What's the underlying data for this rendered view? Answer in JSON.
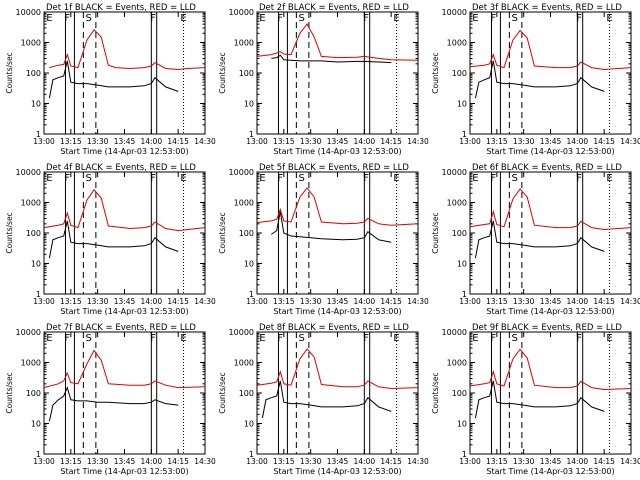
{
  "colors": {
    "events": "#000000",
    "lld": "#e00000",
    "axes": "#000000"
  },
  "shared": {
    "xlabel": "Start Time (14-Apr-03 12:53:00)",
    "ylabel": "Counts/sec",
    "x_tick_labels": [
      "13:00",
      "13:15",
      "13:30",
      "13:45",
      "14:00",
      "14:15",
      "14:30"
    ],
    "y_tick_labels": [
      "1",
      "10",
      "100",
      "1000",
      "10000"
    ],
    "markers": [
      "E",
      "F",
      "S",
      "F",
      "E"
    ]
  },
  "chart_data": [
    {
      "type": "line",
      "title": "Det 1f BLACK = Events, RED = LLD",
      "ylim": [
        1,
        10000
      ],
      "scale": "log",
      "series": [
        {
          "color": "#e00000",
          "x": [
            "13:03",
            "13:08",
            "13:11",
            "13:13",
            "13:15",
            "13:19",
            "13:24",
            "13:28",
            "13:32",
            "13:36",
            "13:40",
            "13:48",
            "13:56",
            "14:00",
            "14:02",
            "14:08",
            "14:15",
            "14:20",
            "14:30"
          ],
          "values": [
            150,
            180,
            190,
            400,
            170,
            150,
            1200,
            2600,
            1500,
            180,
            150,
            140,
            150,
            170,
            220,
            140,
            130,
            140,
            150
          ]
        },
        {
          "color": "#000000",
          "x": [
            "13:03",
            "13:05",
            "13:08",
            "13:11",
            "13:13",
            "13:15",
            "13:19",
            "13:24",
            "13:30",
            "13:36",
            "13:40",
            "13:48",
            "13:56",
            "14:00",
            "14:02",
            "14:08",
            "14:15"
          ],
          "values": [
            15,
            60,
            70,
            80,
            250,
            50,
            45,
            45,
            40,
            35,
            35,
            35,
            38,
            45,
            70,
            35,
            25
          ]
        }
      ]
    },
    {
      "type": "line",
      "title": "Det 2f BLACK = Events, RED = LLD",
      "ylim": [
        1,
        10000
      ],
      "scale": "log",
      "series": [
        {
          "color": "#e00000",
          "x": [
            "13:00",
            "13:08",
            "13:11",
            "13:13",
            "13:15",
            "13:19",
            "13:24",
            "13:28",
            "13:32",
            "13:36",
            "13:45",
            "13:56",
            "14:00",
            "14:08",
            "14:15",
            "14:30"
          ],
          "values": [
            350,
            400,
            450,
            500,
            420,
            400,
            2000,
            4000,
            1500,
            350,
            320,
            330,
            350,
            300,
            270,
            260
          ]
        },
        {
          "color": "#000000",
          "x": [
            "13:08",
            "13:11",
            "13:13",
            "13:15",
            "13:19",
            "13:24",
            "13:30",
            "13:36",
            "13:45",
            "13:56",
            "14:00",
            "14:08",
            "14:15"
          ],
          "values": [
            300,
            320,
            380,
            270,
            260,
            250,
            250,
            250,
            230,
            240,
            240,
            230,
            220
          ]
        }
      ]
    },
    {
      "type": "line",
      "title": "Det 3f BLACK = Events, RED = LLD",
      "ylim": [
        1,
        10000
      ],
      "scale": "log",
      "series": [
        {
          "color": "#e00000",
          "x": [
            "13:00",
            "13:08",
            "13:11",
            "13:13",
            "13:15",
            "13:19",
            "13:24",
            "13:28",
            "13:32",
            "13:36",
            "13:48",
            "13:56",
            "14:00",
            "14:02",
            "14:08",
            "14:15",
            "14:30"
          ],
          "values": [
            160,
            180,
            200,
            400,
            180,
            150,
            1200,
            2500,
            1400,
            170,
            150,
            150,
            170,
            230,
            150,
            130,
            150
          ]
        },
        {
          "color": "#000000",
          "x": [
            "13:03",
            "13:05",
            "13:08",
            "13:11",
            "13:13",
            "13:15",
            "13:19",
            "13:24",
            "13:30",
            "13:36",
            "13:48",
            "13:56",
            "14:00",
            "14:02",
            "14:08",
            "14:15"
          ],
          "values": [
            15,
            50,
            60,
            70,
            250,
            50,
            45,
            45,
            40,
            35,
            35,
            38,
            45,
            70,
            35,
            25
          ]
        }
      ]
    },
    {
      "type": "line",
      "title": "Det 4f BLACK = Events, RED = LLD",
      "ylim": [
        1,
        10000
      ],
      "scale": "log",
      "series": [
        {
          "color": "#e00000",
          "x": [
            "13:00",
            "13:08",
            "13:11",
            "13:13",
            "13:15",
            "13:19",
            "13:24",
            "13:28",
            "13:32",
            "13:36",
            "13:48",
            "13:56",
            "14:00",
            "14:02",
            "14:08",
            "14:15",
            "14:30"
          ],
          "values": [
            150,
            180,
            200,
            450,
            180,
            150,
            1200,
            2600,
            1400,
            170,
            140,
            150,
            170,
            230,
            140,
            120,
            150
          ]
        },
        {
          "color": "#000000",
          "x": [
            "13:03",
            "13:05",
            "13:08",
            "13:11",
            "13:13",
            "13:15",
            "13:19",
            "13:24",
            "13:30",
            "13:36",
            "13:48",
            "13:56",
            "14:00",
            "14:02",
            "14:08",
            "14:15"
          ],
          "values": [
            15,
            60,
            70,
            80,
            250,
            50,
            45,
            45,
            40,
            35,
            35,
            38,
            45,
            70,
            35,
            25
          ]
        }
      ]
    },
    {
      "type": "line",
      "title": "Det 5f BLACK = Events, RED = LLD",
      "ylim": [
        1,
        10000
      ],
      "scale": "log",
      "series": [
        {
          "color": "#e00000",
          "x": [
            "13:00",
            "13:08",
            "13:11",
            "13:13",
            "13:15",
            "13:19",
            "13:24",
            "13:28",
            "13:32",
            "13:36",
            "13:48",
            "13:56",
            "14:00",
            "14:02",
            "14:08",
            "14:15",
            "14:30"
          ],
          "values": [
            220,
            250,
            280,
            600,
            250,
            230,
            1500,
            3000,
            1500,
            230,
            200,
            210,
            230,
            300,
            200,
            180,
            200
          ]
        },
        {
          "color": "#000000",
          "x": [
            "13:08",
            "13:11",
            "13:13",
            "13:15",
            "13:19",
            "13:24",
            "13:30",
            "13:36",
            "13:48",
            "13:56",
            "14:00",
            "14:02",
            "14:08",
            "14:15"
          ],
          "values": [
            90,
            120,
            500,
            100,
            80,
            75,
            70,
            65,
            60,
            62,
            70,
            110,
            60,
            50
          ]
        }
      ]
    },
    {
      "type": "line",
      "title": "Det 6f BLACK = Events, RED = LLD",
      "ylim": [
        1,
        10000
      ],
      "scale": "log",
      "series": [
        {
          "color": "#e00000",
          "x": [
            "13:00",
            "13:08",
            "13:11",
            "13:13",
            "13:15",
            "13:19",
            "13:24",
            "13:28",
            "13:32",
            "13:36",
            "13:48",
            "13:56",
            "14:00",
            "14:02",
            "14:08",
            "14:15",
            "14:30"
          ],
          "values": [
            160,
            190,
            200,
            500,
            190,
            160,
            1300,
            2800,
            1500,
            180,
            150,
            150,
            170,
            240,
            150,
            130,
            150
          ]
        },
        {
          "color": "#000000",
          "x": [
            "13:03",
            "13:05",
            "13:08",
            "13:11",
            "13:13",
            "13:15",
            "13:19",
            "13:24",
            "13:30",
            "13:36",
            "13:48",
            "13:56",
            "14:00",
            "14:02",
            "14:08",
            "14:15"
          ],
          "values": [
            15,
            60,
            70,
            80,
            250,
            50,
            45,
            45,
            40,
            35,
            35,
            38,
            45,
            70,
            35,
            25
          ]
        }
      ]
    },
    {
      "type": "line",
      "title": "Det 7f BLACK = Events, RED = LLD",
      "ylim": [
        1,
        10000
      ],
      "scale": "log",
      "series": [
        {
          "color": "#e00000",
          "x": [
            "13:00",
            "13:08",
            "13:11",
            "13:13",
            "13:15",
            "13:19",
            "13:24",
            "13:28",
            "13:32",
            "13:36",
            "13:48",
            "13:56",
            "14:00",
            "14:02",
            "14:08",
            "14:15",
            "14:30"
          ],
          "values": [
            150,
            200,
            250,
            450,
            220,
            200,
            900,
            2500,
            1200,
            200,
            180,
            180,
            200,
            250,
            180,
            150,
            160
          ]
        },
        {
          "color": "#000000",
          "x": [
            "13:03",
            "13:05",
            "13:08",
            "13:11",
            "13:13",
            "13:15",
            "13:19",
            "13:24",
            "13:30",
            "13:36",
            "13:48",
            "13:56",
            "14:00",
            "14:02",
            "14:08",
            "14:15"
          ],
          "values": [
            12,
            40,
            60,
            80,
            150,
            60,
            55,
            55,
            50,
            50,
            45,
            45,
            50,
            60,
            45,
            40
          ]
        }
      ]
    },
    {
      "type": "line",
      "title": "Det 8f BLACK = Events, RED = LLD",
      "ylim": [
        1,
        10000
      ],
      "scale": "log",
      "series": [
        {
          "color": "#e00000",
          "x": [
            "13:00",
            "13:08",
            "13:11",
            "13:13",
            "13:15",
            "13:19",
            "13:24",
            "13:28",
            "13:32",
            "13:36",
            "13:48",
            "13:56",
            "14:00",
            "14:02",
            "14:08",
            "14:15",
            "14:30"
          ],
          "values": [
            180,
            210,
            230,
            500,
            200,
            180,
            1300,
            2800,
            1500,
            190,
            160,
            160,
            180,
            250,
            160,
            140,
            150
          ]
        },
        {
          "color": "#000000",
          "x": [
            "13:03",
            "13:05",
            "13:08",
            "13:11",
            "13:13",
            "13:15",
            "13:19",
            "13:24",
            "13:30",
            "13:36",
            "13:48",
            "13:56",
            "14:00",
            "14:02",
            "14:08",
            "14:15"
          ],
          "values": [
            15,
            60,
            70,
            80,
            250,
            50,
            45,
            45,
            40,
            35,
            35,
            38,
            45,
            70,
            35,
            25
          ]
        }
      ]
    },
    {
      "type": "line",
      "title": "Det 9f BLACK = Events, RED = LLD",
      "ylim": [
        1,
        10000
      ],
      "scale": "log",
      "series": [
        {
          "color": "#e00000",
          "x": [
            "13:00",
            "13:08",
            "13:11",
            "13:13",
            "13:15",
            "13:19",
            "13:24",
            "13:28",
            "13:32",
            "13:36",
            "13:48",
            "13:56",
            "14:00",
            "14:02",
            "14:08",
            "14:15",
            "14:30"
          ],
          "values": [
            170,
            200,
            220,
            500,
            200,
            170,
            1300,
            2700,
            1400,
            180,
            150,
            150,
            170,
            240,
            150,
            130,
            140
          ]
        },
        {
          "color": "#000000",
          "x": [
            "13:03",
            "13:05",
            "13:08",
            "13:11",
            "13:13",
            "13:15",
            "13:19",
            "13:24",
            "13:30",
            "13:36",
            "13:48",
            "13:56",
            "14:00",
            "14:02",
            "14:08",
            "14:15"
          ],
          "values": [
            15,
            60,
            70,
            80,
            250,
            50,
            45,
            45,
            40,
            35,
            35,
            38,
            45,
            70,
            35,
            25
          ]
        }
      ]
    }
  ]
}
